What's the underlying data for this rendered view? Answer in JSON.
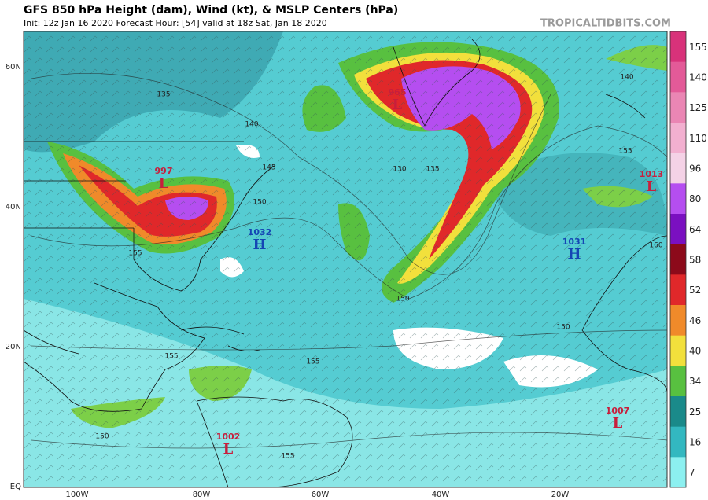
{
  "header": {
    "title": "GFS 850 hPa Height (dam), Wind (kt), & MSLP Centers (hPa)",
    "subtitle": "Init: 12z Jan 16 2020   Forecast Hour: [54]   valid at 18z Sat, Jan 18 2020",
    "brand": "TROPICALTIDBITS.COM"
  },
  "map": {
    "latitude_labels": [
      "60N",
      "40N",
      "20N",
      "EQ"
    ],
    "longitude_labels": [
      "100W",
      "80W",
      "60W",
      "40W",
      "20W"
    ],
    "pressure_centers": [
      {
        "value": 997,
        "letter": "L"
      },
      {
        "value": 1032,
        "letter": "H"
      },
      {
        "value": 965,
        "letter": "L"
      },
      {
        "value": 1031,
        "letter": "H"
      },
      {
        "value": 1013,
        "letter": "L"
      },
      {
        "value": 1002,
        "letter": "L"
      },
      {
        "value": 1007,
        "letter": "L"
      }
    ],
    "contour_labels": [
      135,
      140,
      145,
      150,
      155,
      130,
      135,
      155,
      160,
      155,
      155,
      150,
      150,
      155,
      150,
      140
    ]
  },
  "colorbar": {
    "ticks": [
      155,
      140,
      125,
      110,
      96,
      80,
      64,
      58,
      52,
      46,
      40,
      34,
      25,
      16,
      7
    ],
    "colors": [
      "#d8327a",
      "#e35a98",
      "#ea86b4",
      "#f2b0d0",
      "#f4d2e6",
      "#b54ef0",
      "#7a10c0",
      "#8c0a1a",
      "#e0282a",
      "#f08a2a",
      "#f2e03c",
      "#58c040",
      "#1a8a8a",
      "#33b8c0",
      "#8cf0f0"
    ]
  }
}
